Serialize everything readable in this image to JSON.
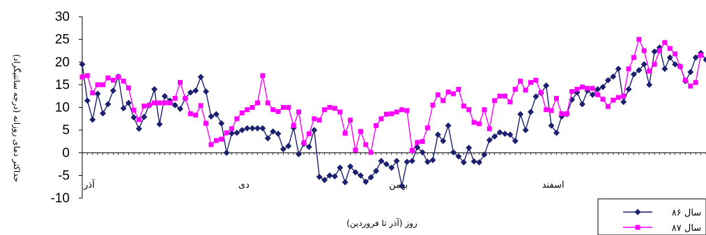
{
  "chart_data": {
    "type": "line",
    "title": "",
    "xlabel": "روز (آذر تا فروردین)",
    "ylabel": "حداکثر دمای روزانه (درجه سانتیگراد)",
    "ylim": [
      -10,
      30
    ],
    "yticks": [
      -10,
      -5,
      0,
      5,
      10,
      15,
      20,
      25,
      30
    ],
    "grid": false,
    "legend_position": "bottom-right",
    "x_tick_labels": [
      {
        "label": "آذر",
        "day": 1
      },
      {
        "label": "دی",
        "day": 31
      },
      {
        "label": "بهمن",
        "day": 61
      },
      {
        "label": "اسفند",
        "day": 91
      }
    ],
    "series": [
      {
        "name": "سال ۸۶",
        "color": "#1a1f6e",
        "marker": "diamond",
        "values": [
          19.5,
          11.5,
          7.3,
          13,
          8.7,
          10.7,
          13.7,
          16.8,
          9.8,
          11,
          7.8,
          5.3,
          7.9,
          10.5,
          14,
          6.3,
          12.5,
          11.5,
          10.5,
          9.7,
          12,
          13.3,
          13.7,
          16.7,
          13.5,
          8,
          8.5,
          6.5,
          0,
          4.3,
          4.4,
          5,
          5.4,
          5.4,
          5.4,
          5.4,
          3.2,
          4.7,
          4.2,
          0.8,
          1.5,
          5.5,
          -0.3,
          2,
          1.3,
          5,
          -5.3,
          -6,
          -5,
          -5.2,
          -3.3,
          -6.5,
          -3,
          -4.3,
          -5,
          -6.4,
          -5.4,
          -4,
          -1.8,
          -2.5,
          -3.3,
          -1.8,
          -7.3,
          -2,
          -1.8,
          1.2,
          0.1,
          -2,
          -1.6,
          4,
          2.6,
          6,
          0.1,
          -0.8,
          -2.1,
          1.1,
          -1.9,
          -2.1,
          -0.4,
          2.8,
          3.6,
          4.5,
          4.2,
          4,
          2.6,
          8.5,
          5,
          9,
          12.4,
          13.2,
          14.8,
          6,
          4.4,
          8,
          8.5,
          11.7,
          13.3,
          10.7,
          13.7,
          12.8,
          14,
          14.5,
          16,
          16.8,
          18.5,
          11.2,
          14,
          17.3,
          18.2,
          19.5,
          15,
          22.3,
          23.2,
          18.5,
          21,
          19.5,
          19,
          15.8,
          17.8,
          21,
          22,
          20.5
        ]
      },
      {
        "name": "سال ۸۷",
        "color": "#ff00ff",
        "marker": "square",
        "values": [
          16.7,
          17,
          13.2,
          15,
          15,
          16.5,
          16,
          16.7,
          15.8,
          14.3,
          9.4,
          7.3,
          10.3,
          10.5,
          11,
          11,
          11,
          11,
          12,
          15.5,
          12,
          8.6,
          8.3,
          10.4,
          6.5,
          1.8,
          2.7,
          3,
          4.4,
          5.3,
          7.5,
          8.8,
          9.5,
          10,
          11,
          17,
          11,
          9.5,
          9.1,
          10,
          10,
          6,
          9,
          2.2,
          4.2,
          7.5,
          7.2,
          9.5,
          10,
          9.8,
          9,
          4.3,
          7.2,
          0.6,
          4.7,
          1.8,
          0.1,
          6,
          7.5,
          8.5,
          8.6,
          9,
          9.5,
          9.3,
          0.5,
          2.3,
          2.5,
          5.5,
          10.5,
          12.8,
          11.5,
          13.4,
          13,
          14,
          10.3,
          9.5,
          6.7,
          6.4,
          9.5,
          5.3,
          11.5,
          12.5,
          12.5,
          11.2,
          14,
          15.8,
          13.8,
          15.5,
          16,
          13.3,
          9.5,
          9.3,
          12,
          8.6,
          8.6,
          13.5,
          14,
          14.5,
          14.2,
          14.2,
          12.8,
          11.8,
          10.2,
          11.6,
          12.2,
          12.5,
          18.5,
          21,
          25,
          22.5,
          18,
          19.5,
          22.5,
          24.3,
          23,
          21.8,
          19,
          16,
          14.7,
          15.5,
          21.5
        ]
      }
    ]
  }
}
